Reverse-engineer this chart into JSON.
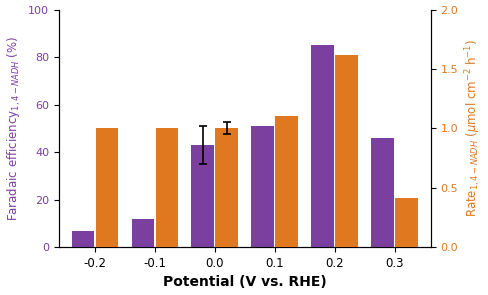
{
  "potentials": [
    -0.2,
    -0.1,
    0.0,
    0.1,
    0.2,
    0.3
  ],
  "faradaic_efficiency": [
    7,
    12,
    43,
    51,
    85,
    46
  ],
  "faradaic_efficiency_err": [
    0,
    0,
    8,
    0,
    0,
    0
  ],
  "rate_nadh": [
    1.0,
    1.0,
    1.0,
    1.1,
    1.62,
    0.41
  ],
  "rate_nadh_err": [
    0,
    0,
    0.05,
    0,
    0,
    0
  ],
  "purple_color": "#7B3FA0",
  "orange_color": "#E07820",
  "xlabel": "Potential (V vs. RHE)",
  "ylim_left": [
    0,
    100
  ],
  "ylim_right": [
    0.0,
    2.0
  ],
  "bar_width": 0.038,
  "bar_gap": 0.002,
  "xlim": [
    -0.26,
    0.36
  ],
  "background_color": "#ffffff",
  "left_yticks": [
    0,
    20,
    40,
    60,
    80,
    100
  ],
  "right_yticks": [
    0.0,
    0.5,
    1.0,
    1.5,
    2.0
  ]
}
